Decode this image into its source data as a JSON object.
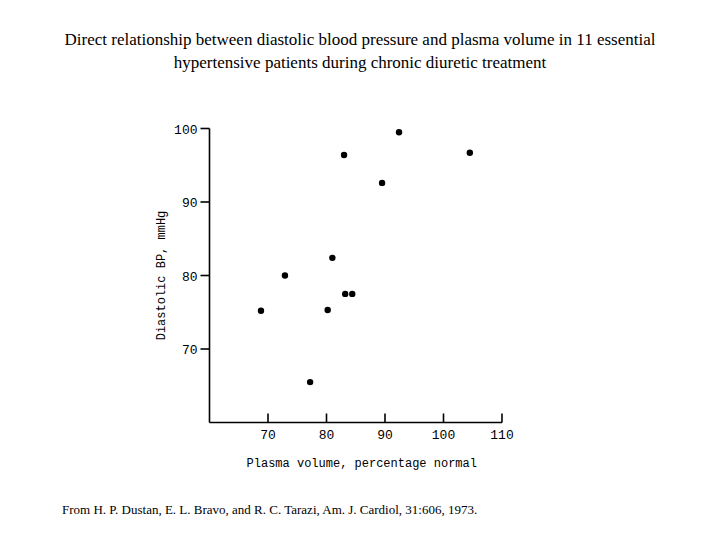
{
  "chart_data": {
    "type": "scatter",
    "title": "Direct relationship between diastolic blood pressure and plasma volume in 11 essential hypertensive patients during chronic diuretic treatment",
    "x_label": "Plasma volume, percentage normal",
    "y_label": "Diastolic BP, mmHg",
    "source": "From H. P. Dustan, E. L. Bravo, and R. C. Tarazi, Am. J. Cardiol, 31:606, 1973.",
    "x": [
      68.8,
      72.9,
      77.2,
      80.2,
      81.0,
      83.2,
      84.4,
      83.0,
      89.5,
      92.4,
      104.5
    ],
    "values": [
      75.2,
      80.0,
      65.5,
      75.3,
      82.4,
      77.5,
      77.5,
      96.4,
      92.6,
      99.5,
      96.7
    ],
    "color": "#000000",
    "marker": "circle",
    "xlim": [
      60,
      110
    ],
    "ylim": [
      60,
      100
    ],
    "xticks": [
      70,
      80,
      90,
      100,
      110
    ],
    "yticks": [
      70,
      80,
      90,
      100
    ],
    "grid": false
  }
}
